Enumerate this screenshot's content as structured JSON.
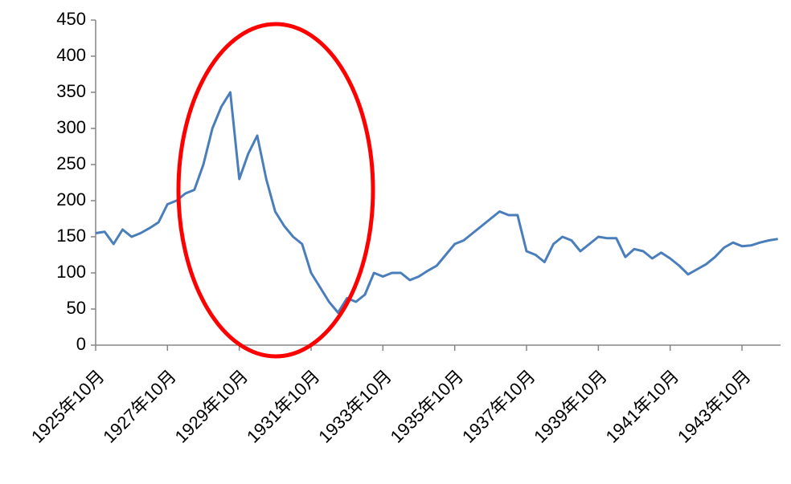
{
  "chart_data": {
    "type": "line",
    "categories": [
      "1925年10月",
      null,
      null,
      null,
      null,
      null,
      null,
      null,
      "1927年10月",
      null,
      null,
      null,
      null,
      null,
      null,
      null,
      "1929年10月",
      null,
      null,
      null,
      null,
      null,
      null,
      null,
      "1931年10月",
      null,
      null,
      null,
      null,
      null,
      null,
      null,
      "1933年10月",
      null,
      null,
      null,
      null,
      null,
      null,
      null,
      "1935年10月",
      null,
      null,
      null,
      null,
      null,
      null,
      null,
      "1937年10月",
      null,
      null,
      null,
      null,
      null,
      null,
      null,
      "1939年10月",
      null,
      null,
      null,
      null,
      null,
      null,
      null,
      "1941年10月",
      null,
      null,
      null,
      null,
      null,
      null,
      null,
      "1943年10月",
      null,
      null,
      null,
      null
    ],
    "values": [
      155,
      157,
      140,
      160,
      150,
      155,
      162,
      170,
      195,
      200,
      210,
      215,
      250,
      300,
      330,
      350,
      230,
      265,
      290,
      230,
      185,
      165,
      150,
      140,
      100,
      80,
      60,
      45,
      65,
      60,
      70,
      100,
      95,
      100,
      100,
      90,
      95,
      103,
      110,
      125,
      140,
      145,
      155,
      165,
      175,
      185,
      180,
      180,
      130,
      125,
      115,
      140,
      150,
      145,
      130,
      140,
      150,
      148,
      148,
      122,
      133,
      130,
      120,
      128,
      120,
      110,
      98,
      105,
      112,
      122,
      135,
      142,
      137,
      138,
      142,
      145,
      147
    ],
    "color": "#4a7ebb",
    "ylim": [
      0,
      450
    ],
    "yticks": [
      0,
      50,
      100,
      150,
      200,
      250,
      300,
      350,
      400,
      450
    ],
    "grid": false
  }
}
